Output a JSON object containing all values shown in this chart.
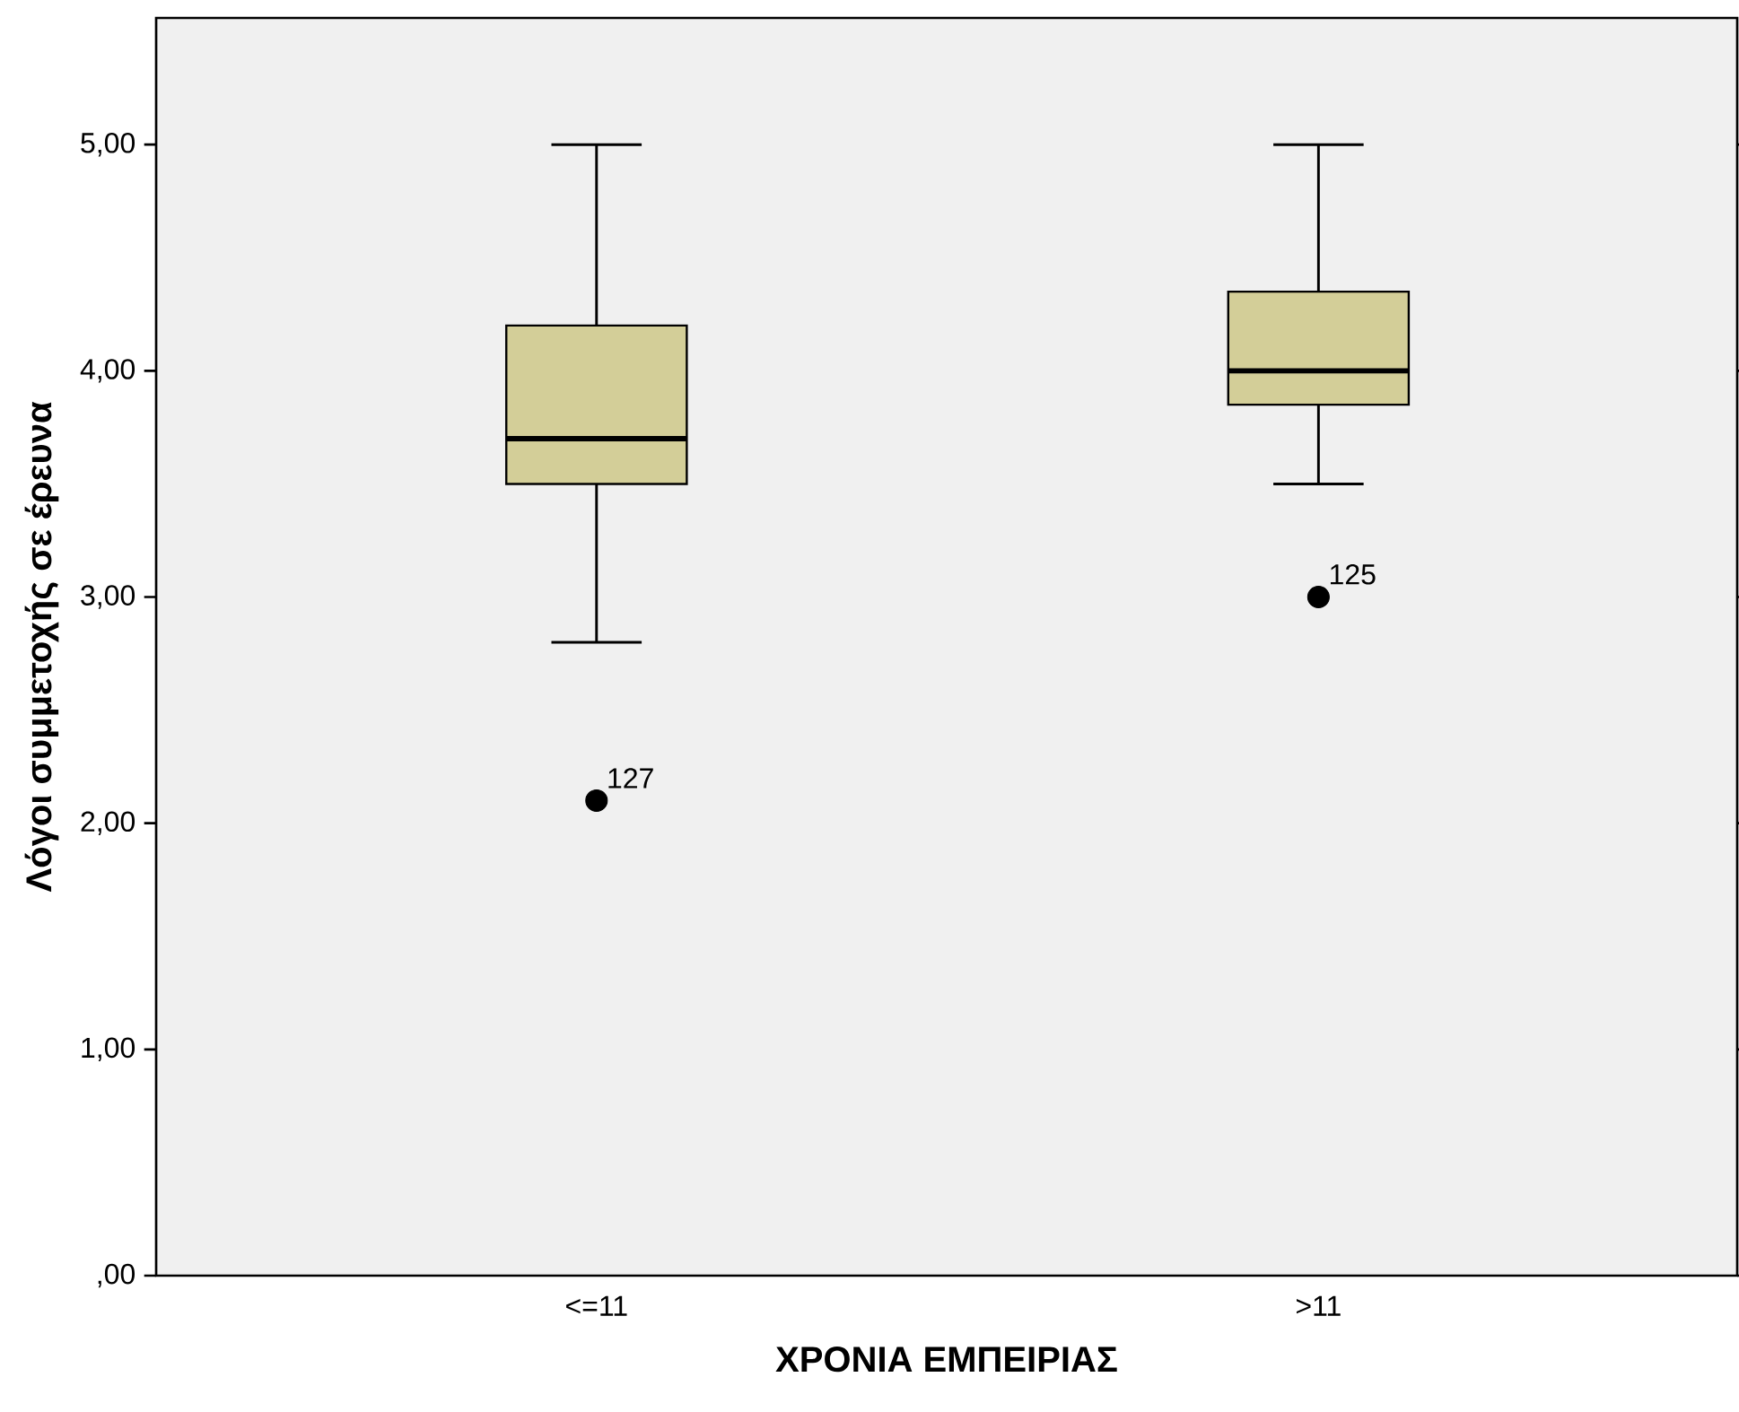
{
  "chart_data": {
    "type": "box",
    "xlabel": "ΧΡΟΝΙΑ ΕΜΠΕΙΡΙΑΣ",
    "ylabel": "Λόγοι συμμετοχής σε έρευνα",
    "categories": [
      "<=11",
      ">11"
    ],
    "series": [
      {
        "color": "#d3ce98",
        "boxes": [
          {
            "low": 2.8,
            "q1": 3.5,
            "median": 3.7,
            "q3": 4.2,
            "high": 5.0,
            "outliers": [
              2.1
            ]
          },
          {
            "low": 3.5,
            "q1": 3.85,
            "median": 4.0,
            "q3": 4.35,
            "high": 5.0,
            "outliers": [
              3.0
            ]
          }
        ]
      }
    ],
    "ylim": [
      0,
      5.56
    ],
    "yticks": [
      {
        "value": 0,
        "label": ",00"
      },
      {
        "value": 1,
        "label": "1,00"
      },
      {
        "value": 2,
        "label": "2,00"
      },
      {
        "value": 3,
        "label": "3,00"
      },
      {
        "value": 4,
        "label": "4,00"
      },
      {
        "value": 5,
        "label": "5,00"
      }
    ],
    "annotations": [
      "127",
      "125"
    ]
  }
}
